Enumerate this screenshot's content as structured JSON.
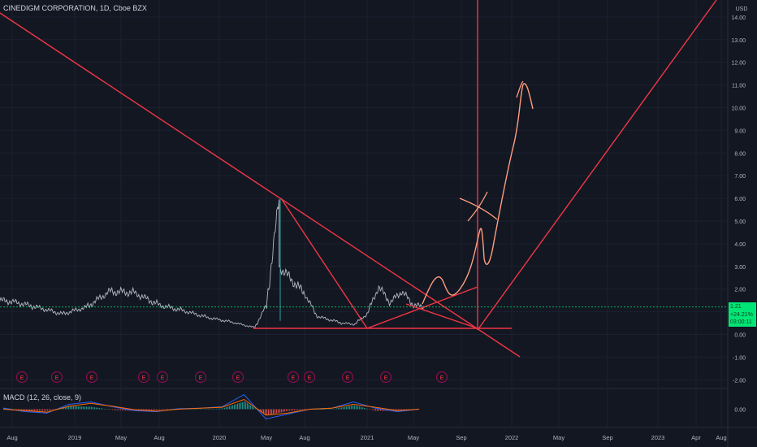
{
  "header": {
    "symbol_title": "CINEDIGM CORPORATION, 1D, Cboe BZX",
    "currency": "USD"
  },
  "price_label": {
    "price": "1.21",
    "change": "+24.21%",
    "countdown": "03:00:11"
  },
  "macd_title": "MACD (12, 26, close, 9)",
  "colors": {
    "background": "#131722",
    "drawing_red": "#f23645",
    "arrow_orange": "#ff9e80",
    "candle_up": "#26a69a",
    "candle_down": "#ef5350",
    "macd_line": "#2962ff",
    "signal_line": "#ff6d00",
    "last_price_line": "#00e676"
  },
  "chart_data": [
    {
      "type": "line",
      "title": "CINEDIGM CORPORATION, 1D, Cboe BZX",
      "y_axis": {
        "label": "USD",
        "ticks": [
          "14.00",
          "13.00",
          "12.00",
          "11.00",
          "10.00",
          "9.00",
          "8.00",
          "7.00",
          "6.00",
          "5.00",
          "4.00",
          "3.00",
          "2.00",
          "1.00",
          "0.00",
          "-1.00",
          "-2.00"
        ],
        "range": [
          -2.5,
          14.6
        ]
      },
      "x_axis": {
        "ticks": [
          "Aug",
          "2019",
          "May",
          "Aug",
          "2020",
          "May",
          "Aug",
          "2021",
          "May",
          "Sep",
          "2022",
          "May",
          "Sep",
          "2023",
          "Apr",
          "Aug"
        ]
      },
      "series": [
        {
          "values_approx": [
            [
              "2018-06",
              1.55
            ],
            [
              "2018-08",
              1.45
            ],
            [
              "2018-10",
              1.2
            ],
            [
              "2018-12",
              0.9
            ],
            [
              "2019-02",
              1.2
            ],
            [
              "2019-04",
              1.9
            ],
            [
              "2019-06",
              1.85
            ],
            [
              "2019-08",
              1.3
            ],
            [
              "2019-10",
              1.05
            ],
            [
              "2019-12",
              0.75
            ],
            [
              "2020-02",
              0.55
            ],
            [
              "2020-04",
              0.3
            ],
            [
              "2020-05",
              1.3
            ],
            [
              "2020-06",
              6.0
            ],
            [
              "2020-06",
              3.0
            ],
            [
              "2020-08",
              1.8
            ],
            [
              "2020-09",
              0.8
            ],
            [
              "2020-11",
              0.5
            ],
            [
              "2020-12",
              0.45
            ],
            [
              "2021-01",
              0.9
            ],
            [
              "2021-02",
              2.1
            ],
            [
              "2021-03",
              1.4
            ],
            [
              "2021-04",
              1.9
            ],
            [
              "2021-05",
              1.3
            ],
            [
              "2021-06",
              1.21
            ]
          ]
        }
      ],
      "last_price": 1.21,
      "annotations": {
        "earnings_markers": [
          "E",
          "E",
          "E",
          "E",
          "E",
          "E",
          "E",
          "E",
          "E",
          "E",
          "E",
          "E"
        ]
      }
    },
    {
      "type": "line",
      "title": "MACD (12, 26, close, 9)",
      "y_axis": {
        "ticks": [
          "0.00"
        ]
      },
      "series": [
        {
          "name": "MACD",
          "values_approx": [
            0.02,
            -0.05,
            -0.08,
            0.1,
            0.15,
            0.05,
            -0.03,
            -0.05,
            0.01,
            0.02,
            0.05,
            0.3,
            -0.2,
            -0.1,
            0.0,
            0.02,
            0.15,
            0.02,
            -0.05,
            0.0
          ]
        },
        {
          "name": "Signal",
          "values_approx": [
            0.0,
            -0.03,
            -0.06,
            0.06,
            0.12,
            0.06,
            -0.01,
            -0.04,
            0.0,
            0.02,
            0.04,
            0.2,
            -0.12,
            -0.08,
            0.0,
            0.02,
            0.1,
            0.04,
            -0.03,
            0.0
          ]
        }
      ]
    }
  ]
}
